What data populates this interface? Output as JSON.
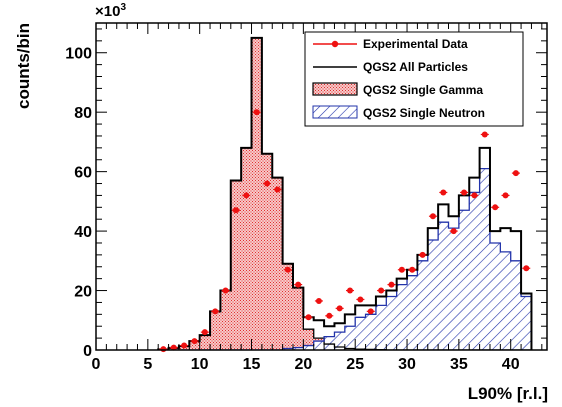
{
  "chart_data": {
    "type": "histogram",
    "title": "",
    "xlabel": "L90% [r.l.]",
    "ylabel": "counts/bin",
    "y_multiplier": "×10",
    "y_multiplier_exp": "3",
    "xlim": [
      0,
      43.5
    ],
    "ylim": [
      0,
      110
    ],
    "x_major_ticks": [
      0,
      5,
      10,
      15,
      20,
      25,
      30,
      35,
      40
    ],
    "y_major_ticks": [
      0,
      20,
      40,
      60,
      80,
      100
    ],
    "bin_width": 1,
    "bin_start": 6,
    "legend_position": "top-right",
    "series": [
      {
        "name": "Experimental Data",
        "kind": "points",
        "color": "#ee1111",
        "x": [
          6.5,
          7.5,
          8.5,
          9.5,
          10.5,
          11.5,
          12.5,
          13.5,
          14.5,
          15.5,
          16.5,
          17.5,
          18.5,
          19.5,
          20.5,
          21.5,
          22.5,
          23.5,
          24.5,
          25.5,
          26.5,
          27.5,
          28.5,
          29.5,
          30.5,
          31.5,
          32.5,
          33.5,
          34.5,
          35.5,
          36.5,
          37.5,
          38.5,
          39.5,
          40.5,
          41.5
        ],
        "y": [
          0.3,
          0.8,
          1.5,
          3.0,
          6.0,
          13.0,
          20.0,
          47.0,
          52.0,
          80.0,
          56.0,
          54.0,
          27.0,
          22.0,
          11.0,
          16.5,
          11.5,
          14.0,
          20.0,
          17.0,
          13.0,
          20.0,
          22.0,
          27.0,
          27.0,
          32.0,
          45.0,
          53.0,
          40.0,
          53.0,
          52.0,
          72.5,
          48.0,
          52.0,
          59.5,
          27.5
        ]
      },
      {
        "name": "QGS2 All Particles",
        "kind": "step",
        "color": "#000000",
        "values": [
          0.2,
          0.7,
          1.3,
          3.0,
          5.0,
          13.0,
          20.0,
          57.0,
          68.0,
          105.0,
          66.0,
          58.0,
          29.0,
          21.0,
          11.0,
          10.0,
          8.0,
          9.0,
          12.0,
          15.0,
          15.0,
          18.0,
          20.0,
          24.0,
          27.0,
          32.0,
          41.0,
          49.0,
          45.0,
          52.0,
          58.0,
          68.0,
          40.0,
          41.0,
          40.0,
          19.0
        ]
      },
      {
        "name": "QGS2 Single Gamma",
        "kind": "step-filled",
        "color": "#ee3333",
        "values": [
          0.2,
          0.7,
          1.3,
          3.0,
          5.0,
          13.0,
          20.0,
          57.0,
          68.0,
          105.0,
          66.0,
          58.0,
          29.0,
          21.0,
          7.0,
          4.0,
          2.0,
          1.0,
          0.5,
          0.3,
          0.2,
          0.1,
          0,
          0,
          0,
          0,
          0,
          0,
          0,
          0,
          0,
          0,
          0,
          0,
          0,
          0
        ]
      },
      {
        "name": "QGS2 Single Neutron",
        "kind": "step-hatched",
        "color": "#2233aa",
        "values": [
          0,
          0,
          0,
          0,
          0,
          0,
          0,
          0,
          0,
          0,
          0,
          0,
          0.5,
          0.8,
          1.5,
          3.0,
          4.5,
          6.0,
          8.0,
          11.0,
          12.0,
          15.0,
          18.0,
          22.0,
          25.0,
          30.0,
          37.0,
          43.0,
          41.0,
          47.0,
          53.0,
          61.0,
          36.0,
          33.0,
          30.0,
          18.0
        ]
      }
    ]
  }
}
